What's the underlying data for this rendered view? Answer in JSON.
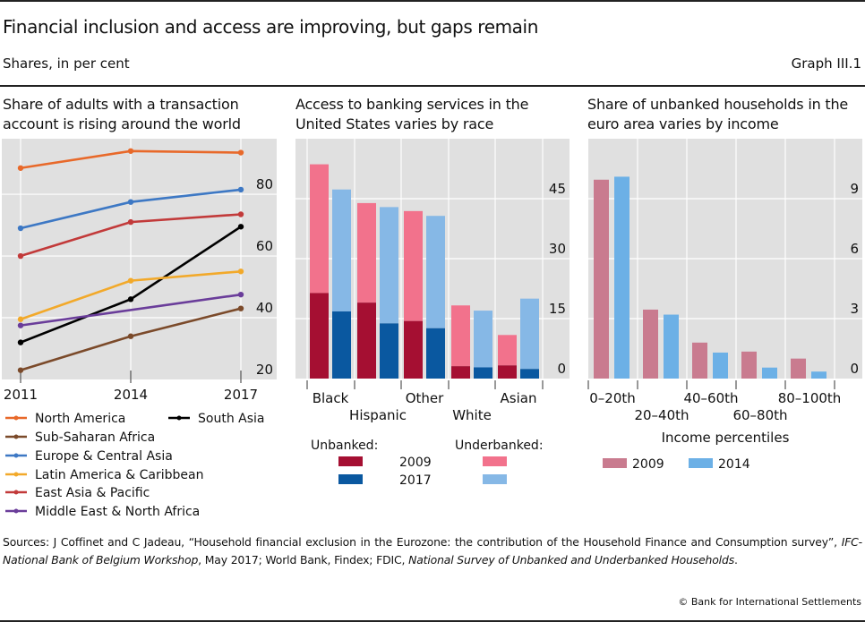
{
  "header": {
    "title": "Financial inclusion and access are improving, but gaps remain",
    "subtitle": "Shares, in per cent",
    "graph_id": "Graph III.1"
  },
  "chart_data": [
    {
      "type": "line",
      "title_line1": "Share of adults with a transaction",
      "title_line2": "account is rising around the world",
      "x": [
        "2011",
        "2014",
        "2017"
      ],
      "ylim": [
        20,
        98
      ],
      "yticks": [
        20,
        40,
        60,
        80
      ],
      "y_axis_side": "right",
      "grid": true,
      "legend_placement": "bottom",
      "series": [
        {
          "name": "North America",
          "color": "#e8692a",
          "values": [
            88.5,
            94,
            93.5
          ]
        },
        {
          "name": "South Asia",
          "color": "#000000",
          "values": [
            32,
            46,
            69.5
          ]
        },
        {
          "name": "Sub-Saharan Africa",
          "color": "#7b4a2a",
          "values": [
            23,
            34,
            43
          ]
        },
        {
          "name": "Europe & Central Asia",
          "color": "#3d78c4",
          "values": [
            69,
            77.5,
            81.5
          ]
        },
        {
          "name": "Latin America & Caribbean",
          "color": "#f2a92a",
          "values": [
            39.5,
            52,
            55
          ]
        },
        {
          "name": "East Asia & Pacific",
          "color": "#c23a3a",
          "values": [
            60,
            71,
            73.5
          ]
        },
        {
          "name": "Middle East & North Africa",
          "color": "#6a3d9a",
          "values": [
            37.5,
            null,
            47.5
          ]
        }
      ]
    },
    {
      "type": "bar",
      "stacked": true,
      "title_line1": "Access to banking services in the",
      "title_line2": "United States varies by race",
      "categories": [
        "Black",
        "Hispanic",
        "Other",
        "White",
        "Asian"
      ],
      "ylim": [
        0,
        60
      ],
      "yticks": [
        0,
        15,
        30,
        45
      ],
      "y_axis_side": "right",
      "grid": true,
      "legend_placement": "bottom",
      "legend": {
        "unbanked_label": "Unbanked:",
        "underbanked_label": "Underbanked:",
        "years": [
          "2009",
          "2017"
        ]
      },
      "colors": {
        "unbanked_2009": "#a50f32",
        "unbanked_2017": "#0a58a0",
        "underbanked_2009": "#f2728c",
        "underbanked_2017": "#86b8e6"
      },
      "series": [
        {
          "name": "Unbanked 2009",
          "values": [
            21.4,
            19.0,
            14.4,
            3.1,
            3.3
          ]
        },
        {
          "name": "Underbanked 2009",
          "values": [
            32.2,
            24.9,
            27.5,
            15.2,
            7.6
          ]
        },
        {
          "name": "Unbanked 2017",
          "values": [
            16.8,
            13.8,
            12.6,
            2.8,
            2.4
          ]
        },
        {
          "name": "Underbanked 2017",
          "values": [
            30.5,
            29.1,
            28.1,
            14.2,
            17.6
          ]
        }
      ]
    },
    {
      "type": "bar",
      "title_line1": "Share of unbanked households in the",
      "title_line2": "euro area varies by income",
      "categories": [
        "0–20th",
        "20–40th",
        "40–60th",
        "60–80th",
        "80–100th"
      ],
      "xlabel": "Income percentiles",
      "ylim": [
        0,
        12
      ],
      "yticks": [
        0,
        3,
        6,
        9
      ],
      "y_axis_side": "right",
      "grid": true,
      "legend_placement": "bottom",
      "series": [
        {
          "name": "2009",
          "color": "#c97b8f",
          "values": [
            9.95,
            3.45,
            1.8,
            1.35,
            1.0
          ]
        },
        {
          "name": "2014",
          "color": "#6cb0e6",
          "values": [
            10.1,
            3.2,
            1.3,
            0.55,
            0.35
          ]
        }
      ]
    }
  ],
  "footer": {
    "sources_prefix": "Sources: J Coffinet and C Jadeau, “Household financial exclusion in the Eurozone: the contribution of the Household Finance and Consumption survey”, ",
    "sources_italic1": "IFC-National Bank of Belgium Workshop",
    "sources_mid": ", May 2017; World Bank, Findex; FDIC, ",
    "sources_italic2": "National Survey of Unbanked and Underbanked Households",
    "sources_end": ".",
    "copyright": "© Bank for International Settlements"
  }
}
